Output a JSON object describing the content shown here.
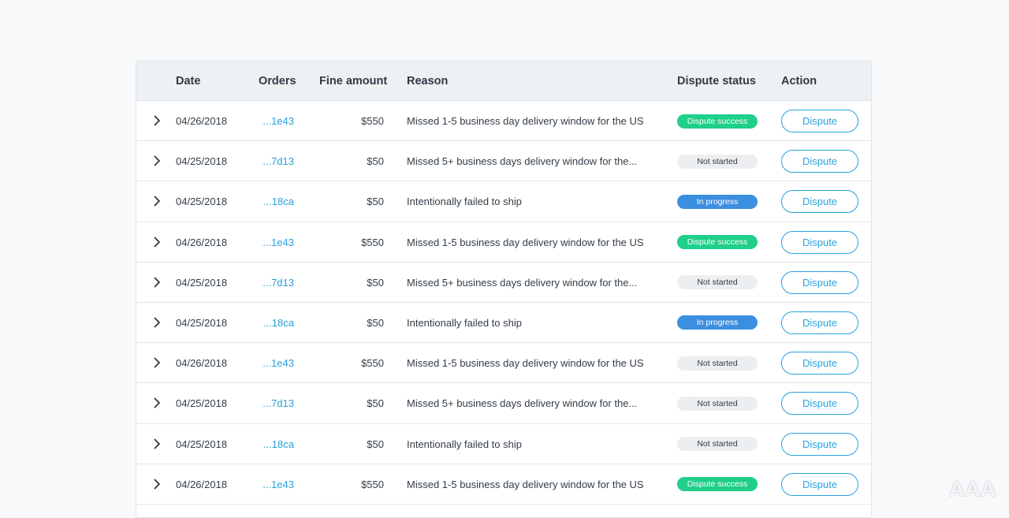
{
  "table": {
    "headers": {
      "date": "Date",
      "orders": "Orders",
      "fine_amount": "Fine amount",
      "reason": "Reason",
      "dispute_status": "Dispute status",
      "action": "Action"
    },
    "rows": [
      {
        "date": "04/26/2018",
        "order": "...1e43",
        "fine": "$550",
        "reason": "Missed 1-5 business day delivery window for the US",
        "status": "Dispute success",
        "status_type": "success",
        "action": "Dispute"
      },
      {
        "date": "04/25/2018",
        "order": "...7d13",
        "fine": "$50",
        "reason": "Missed 5+ business days delivery window for the...",
        "status": "Not started",
        "status_type": "notstarted",
        "action": "Dispute"
      },
      {
        "date": "04/25/2018",
        "order": "...18ca",
        "fine": "$50",
        "reason": "Intentionally failed to ship",
        "status": "In progress",
        "status_type": "progress",
        "action": "Dispute"
      },
      {
        "date": "04/26/2018",
        "order": "...1e43",
        "fine": "$550",
        "reason": "Missed 1-5 business day delivery window for the US",
        "status": "Dispute success",
        "status_type": "success",
        "action": "Dispute"
      },
      {
        "date": "04/25/2018",
        "order": "...7d13",
        "fine": "$50",
        "reason": "Missed 5+ business days delivery window for the...",
        "status": "Not started",
        "status_type": "notstarted",
        "action": "Dispute"
      },
      {
        "date": "04/25/2018",
        "order": "...18ca",
        "fine": "$50",
        "reason": "Intentionally failed to ship",
        "status": "In progress",
        "status_type": "progress",
        "action": "Dispute"
      },
      {
        "date": "04/26/2018",
        "order": "...1e43",
        "fine": "$550",
        "reason": "Missed 1-5 business day delivery window for the US",
        "status": "Not started",
        "status_type": "notstarted",
        "action": "Dispute"
      },
      {
        "date": "04/25/2018",
        "order": "...7d13",
        "fine": "$50",
        "reason": "Missed 5+ business days delivery window for the...",
        "status": "Not started",
        "status_type": "notstarted",
        "action": "Dispute"
      },
      {
        "date": "04/25/2018",
        "order": "...18ca",
        "fine": "$50",
        "reason": "Intentionally failed to ship",
        "status": "Not started",
        "status_type": "notstarted",
        "action": "Dispute"
      },
      {
        "date": "04/26/2018",
        "order": "...1e43",
        "fine": "$550",
        "reason": "Missed 1-5 business day delivery window for the US",
        "status": "Dispute success",
        "status_type": "success",
        "action": "Dispute"
      }
    ]
  },
  "icons": {
    "expand": "chevron-right-icon"
  },
  "colors": {
    "accent": "#2aa3df",
    "success": "#1fcf8a",
    "in_progress": "#3c8ee0",
    "not_started": "#eceef0"
  },
  "watermark": "AAA"
}
